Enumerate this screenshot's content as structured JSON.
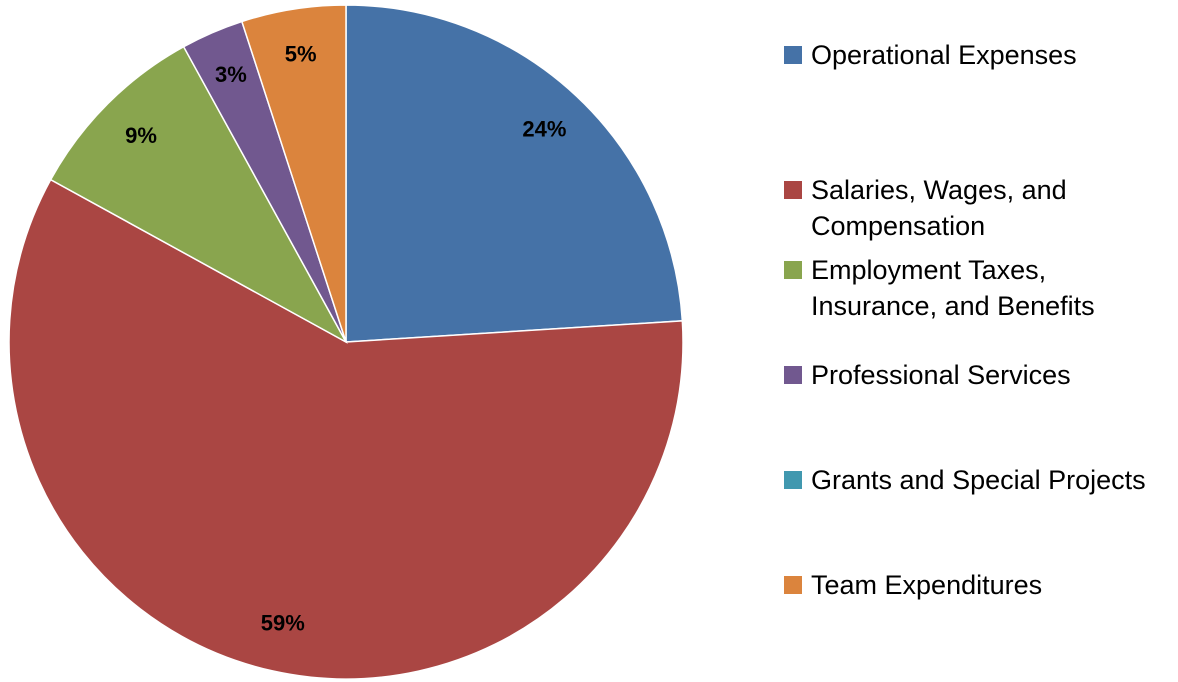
{
  "chart_data": {
    "type": "pie",
    "categories": [
      "Operational Expenses",
      "Salaries, Wages, and Compensation",
      "Employment Taxes, Insurance, and Benefits",
      "Professional Services",
      "Grants and Special Projects",
      "Team Expenditures"
    ],
    "values": [
      24,
      59,
      9,
      3,
      0,
      5
    ],
    "value_labels": [
      "24%",
      "59%",
      "9%",
      "3%",
      null,
      "5%"
    ],
    "colors": [
      "#4572a7",
      "#aa4643",
      "#89a54e",
      "#71588f",
      "#4198af",
      "#db843d"
    ],
    "legend": "right"
  }
}
